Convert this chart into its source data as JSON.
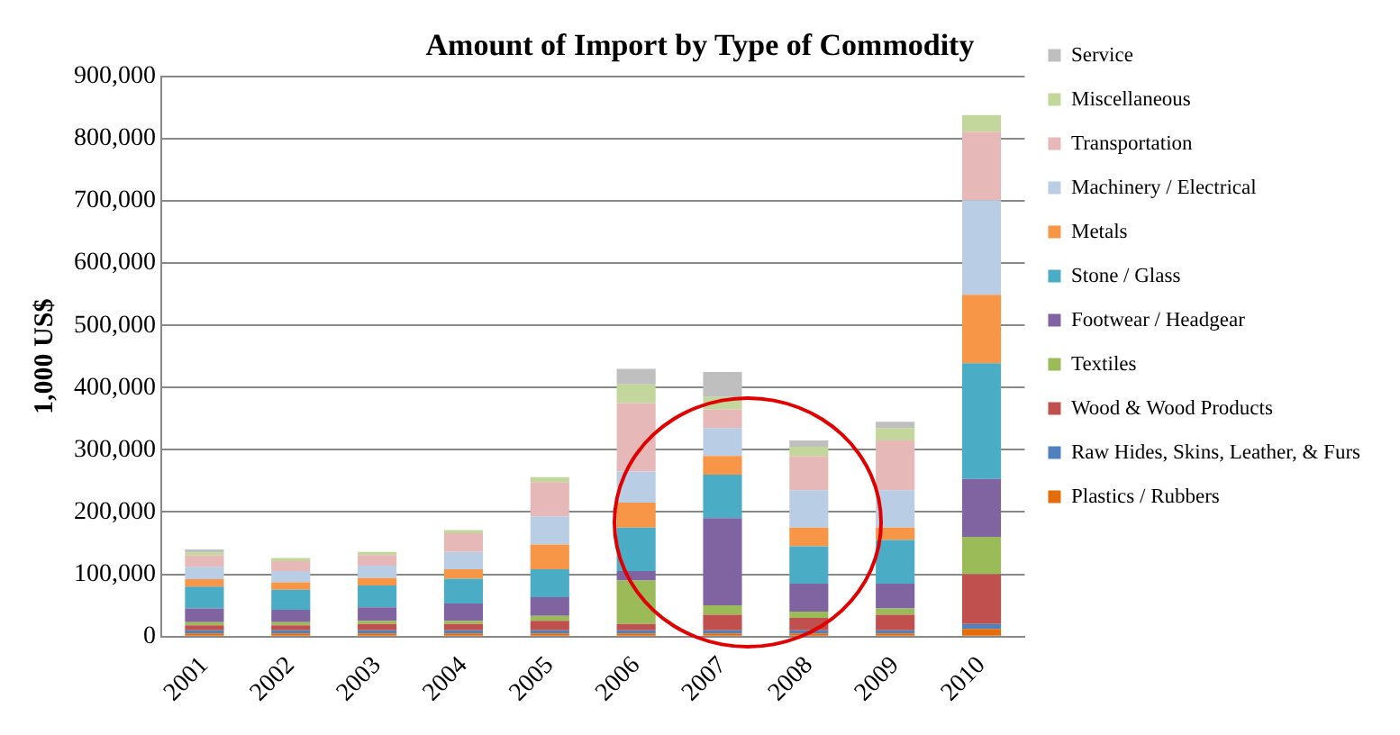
{
  "chart_data": {
    "type": "bar",
    "stacked": true,
    "title": "Amount of Import by Type of Commodity",
    "ylabel": "1,000 US$",
    "categories": [
      "2001",
      "2002",
      "2003",
      "2004",
      "2005",
      "2006",
      "2007",
      "2008",
      "2009",
      "2010"
    ],
    "ylim": [
      0,
      900000
    ],
    "yticks": [
      {
        "value": 0,
        "label": "0"
      },
      {
        "value": 100000,
        "label": "100,000"
      },
      {
        "value": 200000,
        "label": "200,000"
      },
      {
        "value": 300000,
        "label": "300,000"
      },
      {
        "value": 400000,
        "label": "400,000"
      },
      {
        "value": 500000,
        "label": "500,000"
      },
      {
        "value": 600000,
        "label": "600,000"
      },
      {
        "value": 700000,
        "label": "700,000"
      },
      {
        "value": 800000,
        "label": "800,000"
      },
      {
        "value": 900000,
        "label": "900,000"
      }
    ],
    "grid": "y",
    "legend": "right",
    "series": [
      {
        "name": "Plastics / Rubbers",
        "color": "#e46c0a",
        "values": [
          5000,
          5000,
          5000,
          5000,
          5000,
          5000,
          5000,
          5000,
          5000,
          12000
        ]
      },
      {
        "name": "Raw Hides, Skins, Leather, & Furs",
        "color": "#4f81bd",
        "values": [
          5000,
          5000,
          5000,
          5000,
          5000,
          5000,
          5000,
          5000,
          5000,
          8000
        ]
      },
      {
        "name": "Wood & Wood Products",
        "color": "#c0504d",
        "values": [
          8000,
          8000,
          10000,
          10000,
          15000,
          10000,
          25000,
          20000,
          25000,
          80000
        ]
      },
      {
        "name": "Textiles",
        "color": "#9bbb59",
        "values": [
          5000,
          5000,
          5000,
          5000,
          8000,
          70000,
          15000,
          10000,
          10000,
          60000
        ]
      },
      {
        "name": "Footwear / Headgear",
        "color": "#8064a2",
        "values": [
          22000,
          20000,
          22000,
          28000,
          30000,
          15000,
          140000,
          45000,
          40000,
          93000
        ]
      },
      {
        "name": "Stone / Glass",
        "color": "#4bacc6",
        "values": [
          35000,
          32000,
          35000,
          40000,
          45000,
          70000,
          70000,
          60000,
          70000,
          186000
        ]
      },
      {
        "name": "Metals",
        "color": "#f79646",
        "values": [
          12000,
          12000,
          12000,
          15000,
          40000,
          40000,
          30000,
          30000,
          20000,
          110000
        ]
      },
      {
        "name": "Machinery / Electrical",
        "color": "#b9cde5",
        "values": [
          20000,
          18000,
          20000,
          28000,
          45000,
          50000,
          45000,
          60000,
          60000,
          152000
        ]
      },
      {
        "name": "Transportation",
        "color": "#e6b9b8",
        "values": [
          18000,
          16000,
          17000,
          30000,
          55000,
          110000,
          30000,
          55000,
          80000,
          110000
        ]
      },
      {
        "name": "Miscellaneous",
        "color": "#c3d69b",
        "values": [
          5000,
          5000,
          5000,
          5000,
          8000,
          30000,
          20000,
          15000,
          20000,
          27000
        ]
      },
      {
        "name": "Service",
        "color": "#bfbfbf",
        "values": [
          5000,
          null,
          null,
          null,
          null,
          25000,
          40000,
          10000,
          10000,
          0
        ]
      }
    ]
  }
}
